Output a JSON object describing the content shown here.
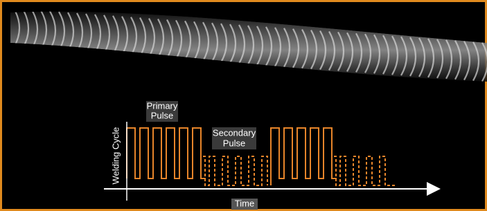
{
  "labels": {
    "primary": [
      "Primary",
      "Pulse"
    ],
    "secondary": [
      "Secondary",
      "Pulse"
    ],
    "y_axis": "Welding Cycle",
    "x_axis": "Time"
  }
}
